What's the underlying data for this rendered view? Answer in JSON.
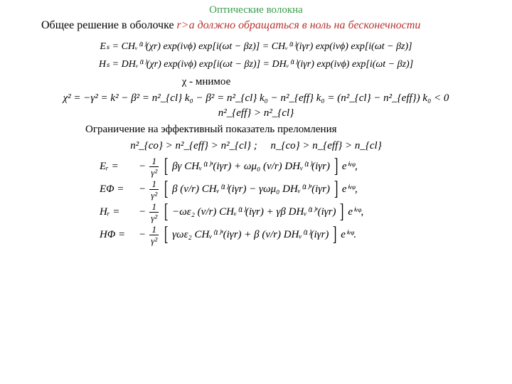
{
  "colors": {
    "title": "#3a9d4c",
    "subRed": "#b83030",
    "text": "#000000",
    "bg": "#ffffff"
  },
  "title": "Оптические волокна",
  "sub_prefix": "Общее решение в оболочке ",
  "sub_ital_var": "r>a",
  "sub_ital_rest": " должно обращаться в ноль на бесконечности",
  "eq_ez": "Eₛ = CHᵥ⁽¹⁾(χr) exp(iνϕ) exp[i(ωt − βz)] = CHᵥ⁽¹⁾(iγr) exp(iνϕ) exp[i(ωt − βz)]",
  "eq_hz": "Hₛ = DHᵥ⁽¹⁾(χr) exp(iνϕ) exp[i(ωt − βz)] = DHᵥ⁽¹⁾(iγr) exp(iνϕ) exp[i(ωt − βz)]",
  "chi_note_sym": "χ",
  "chi_note_txt": " - мнимое",
  "eq_chi2": "χ² = −γ² = k² − β² = n²_{cl} k₀ − β² = n²_{cl} k₀ − n²_{eff} k₀ = (n²_{cl} − n²_{eff}) k₀ < 0",
  "eq_neff": "n²_{eff} > n²_{cl}",
  "constraint_txt": "Ограничение на эффективный показатель преломления",
  "eq_range": "n²_{co} > n²_{eff} > n²_{cl} ;  n_{co} > n_{eff} > n_{cl}",
  "fields": {
    "Er_lhs": "Eᵣ =",
    "Er_in": "βγ CHᵥ⁽¹⁾′(iγr) + ωμ₀ (ν/r) DHᵥ⁽¹⁾(iγr)",
    "Er_tail": " eⁱᵛᵠ,",
    "Ep_lhs": "EΦ =",
    "Ep_in": "β (ν/r) CHᵥ⁽¹⁾(iγr) − γωμ₀ DHᵥ⁽¹⁾′(iγr)",
    "Ep_tail": " eⁱᵛᵠ,",
    "Hr_lhs": "Hᵣ =",
    "Hr_in": "−ωε₂ (ν/r) CHᵥ⁽¹⁾(iγr) + γβ DHᵥ⁽¹⁾′(iγr)",
    "Hr_tail": " eⁱᵛᵠ,",
    "Hp_lhs": "HΦ =",
    "Hp_in": "γωε₂ CHᵥ⁽¹⁾′(iγr) + β (ν/r) DHᵥ⁽¹⁾(iγr)",
    "Hp_tail": " eⁱᵛᵠ."
  },
  "frac": {
    "num": "1",
    "den": "γ²"
  }
}
